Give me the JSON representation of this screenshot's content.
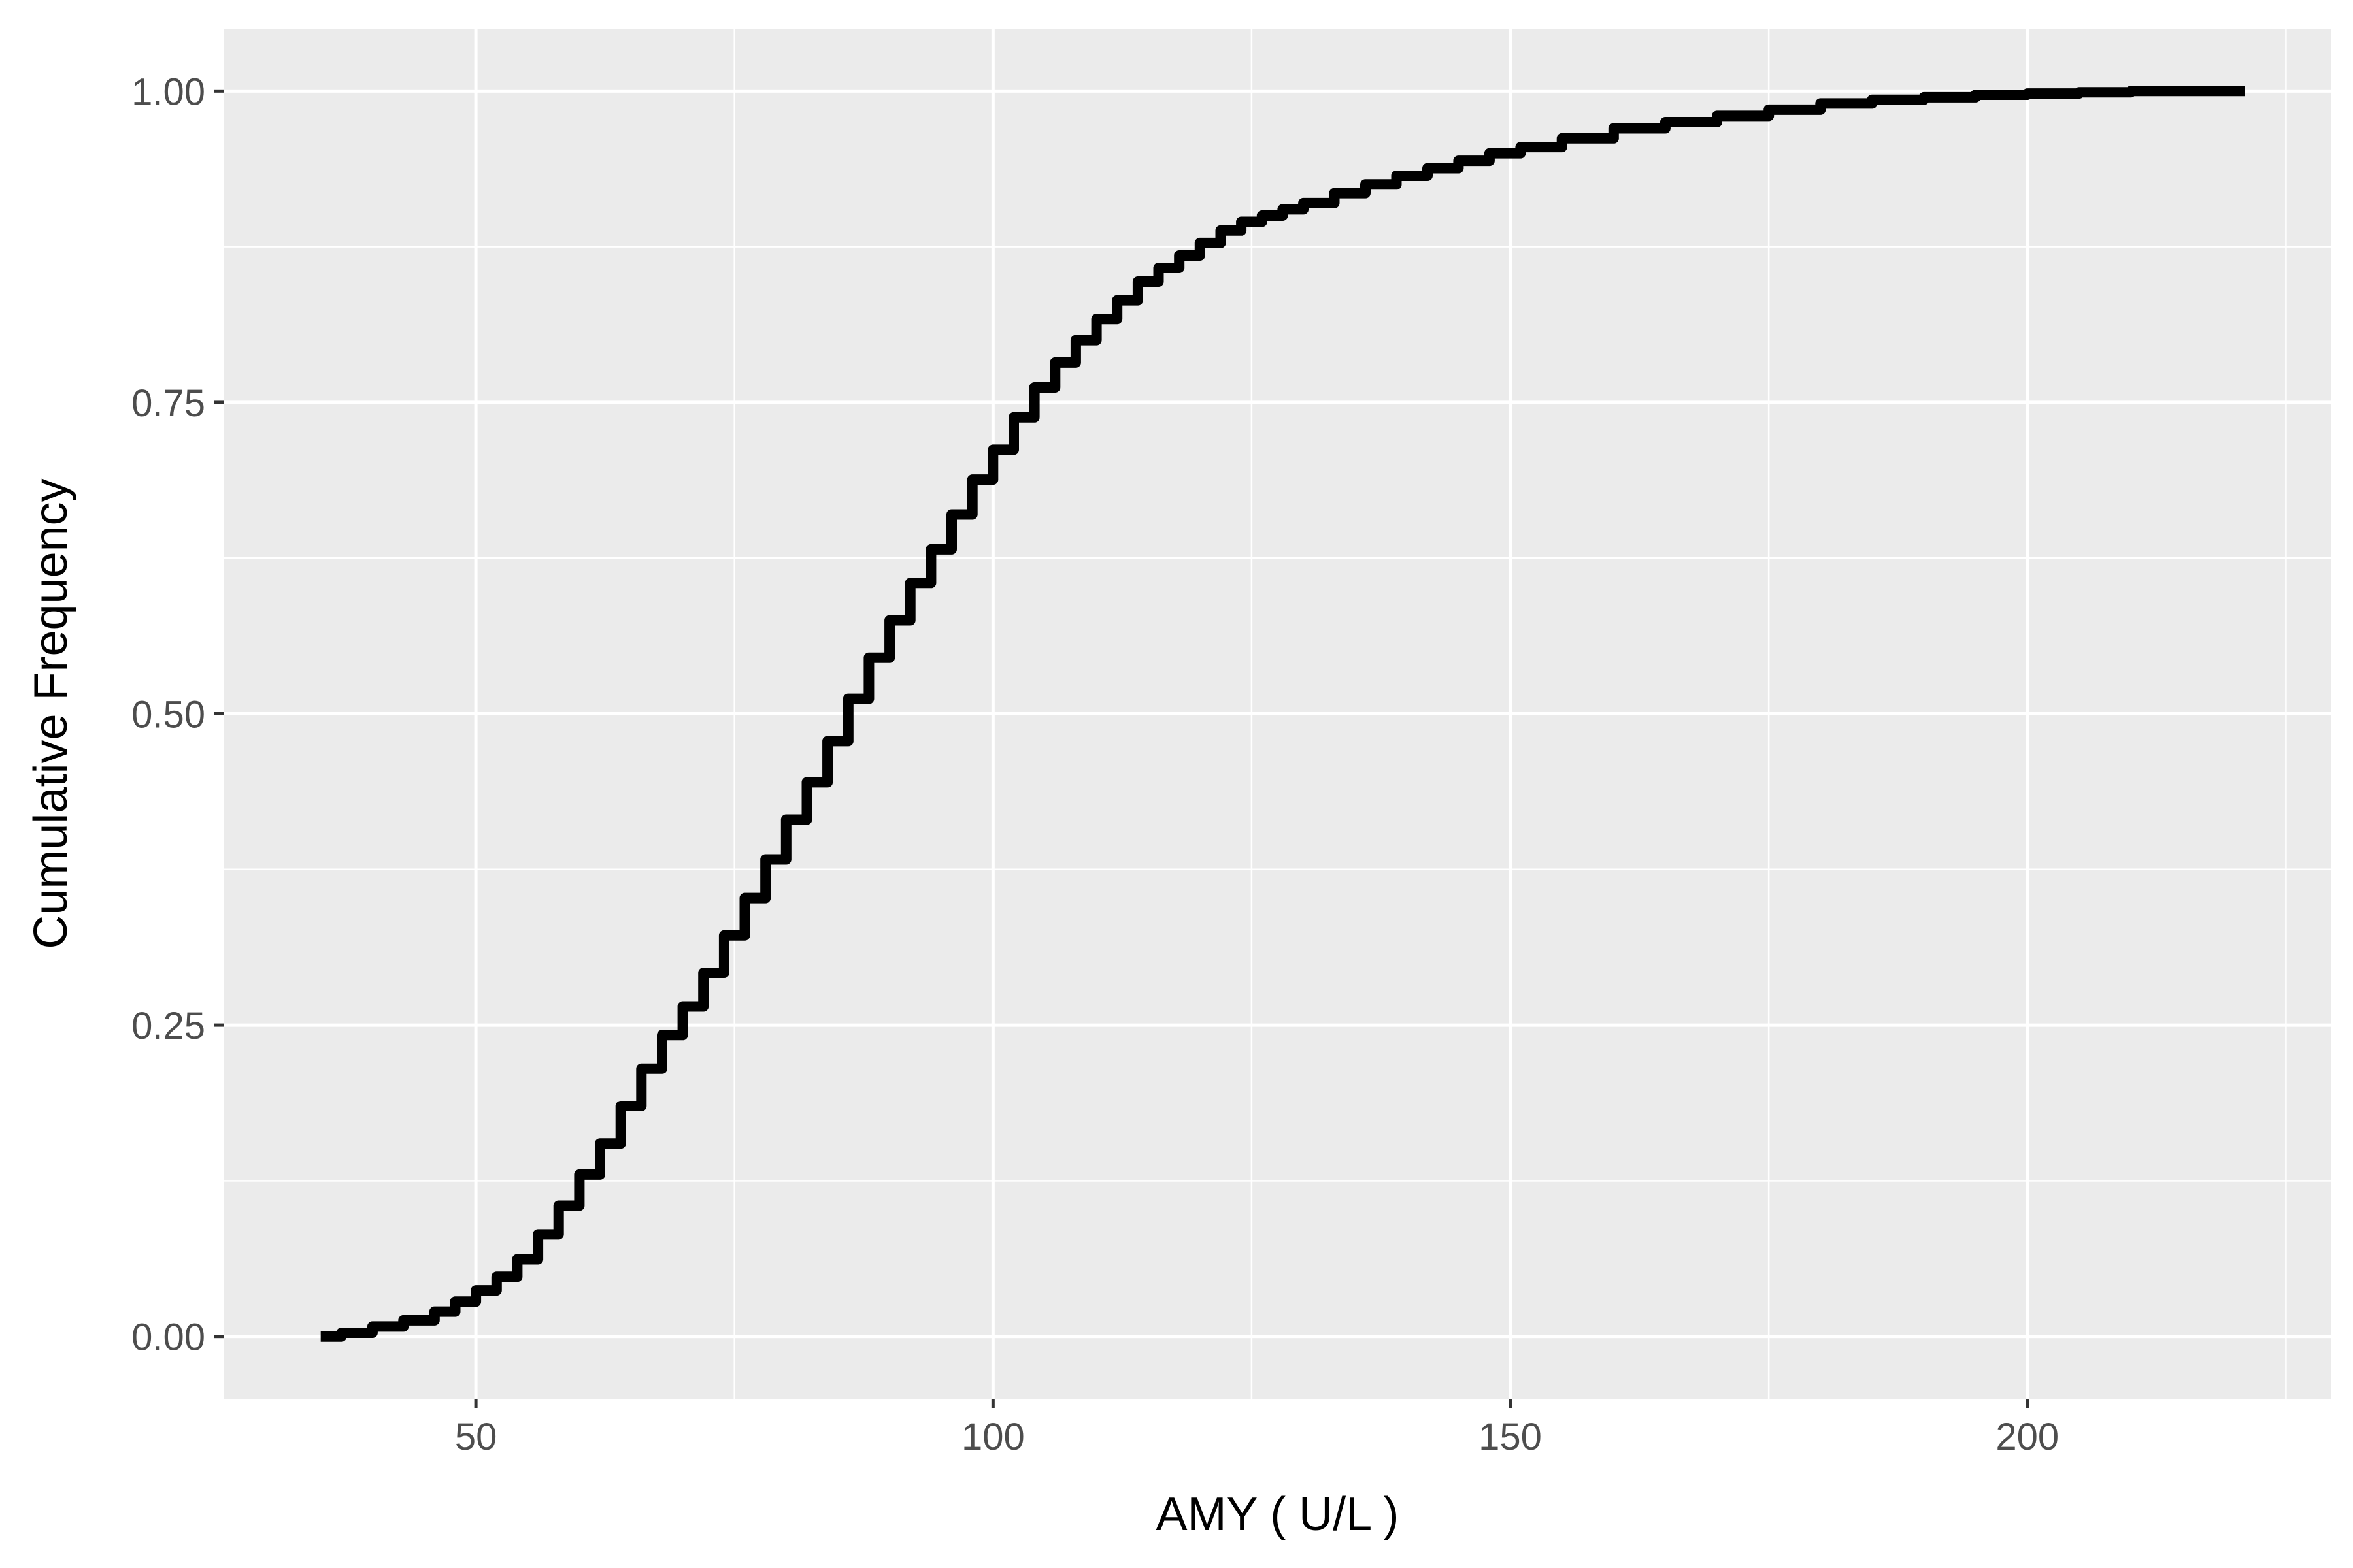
{
  "chart_data": {
    "type": "line",
    "subtype": "step-ecdf",
    "title": "",
    "xlabel": "AMY ( U/L )",
    "ylabel": "Cumulative Frequency",
    "xlim": [
      25.6,
      229.4
    ],
    "ylim": [
      -0.05,
      1.05
    ],
    "x_ticks": [
      50,
      100,
      150,
      200
    ],
    "x_tick_labels": [
      "50",
      "100",
      "150",
      "200"
    ],
    "y_ticks": [
      0,
      0.25,
      0.5,
      0.75,
      1.0
    ],
    "y_tick_labels": [
      "0.00",
      "0.25",
      "0.50",
      "0.75",
      "1.00"
    ],
    "grid": true,
    "background_color": "#ebebeb",
    "grid_color": "#ffffff",
    "line_color": "#000000",
    "series": [
      {
        "x": [
          35,
          37,
          40,
          43,
          46,
          48,
          50,
          52,
          54,
          56,
          58,
          60,
          62,
          64,
          66,
          68,
          70,
          72,
          74,
          76,
          78,
          80,
          82,
          84,
          86,
          88,
          90,
          92,
          94,
          96,
          98,
          100,
          102,
          104,
          106,
          108,
          110,
          112,
          114,
          116,
          118,
          120,
          122,
          124,
          126,
          128,
          130,
          133,
          136,
          139,
          142,
          145,
          148,
          151,
          155,
          160,
          165,
          170,
          175,
          180,
          185,
          190,
          195,
          200,
          205,
          210,
          215,
          221
        ],
        "y": [
          0.0,
          0.003,
          0.008,
          0.013,
          0.02,
          0.028,
          0.037,
          0.048,
          0.062,
          0.082,
          0.105,
          0.13,
          0.155,
          0.185,
          0.215,
          0.242,
          0.265,
          0.292,
          0.322,
          0.352,
          0.383,
          0.415,
          0.445,
          0.478,
          0.512,
          0.545,
          0.575,
          0.605,
          0.632,
          0.66,
          0.688,
          0.712,
          0.738,
          0.762,
          0.782,
          0.8,
          0.817,
          0.832,
          0.847,
          0.858,
          0.868,
          0.878,
          0.888,
          0.895,
          0.9,
          0.905,
          0.91,
          0.918,
          0.925,
          0.932,
          0.938,
          0.944,
          0.95,
          0.955,
          0.962,
          0.97,
          0.975,
          0.98,
          0.985,
          0.99,
          0.993,
          0.995,
          0.997,
          0.998,
          0.999,
          1.0,
          1.0,
          1.0
        ]
      }
    ]
  }
}
